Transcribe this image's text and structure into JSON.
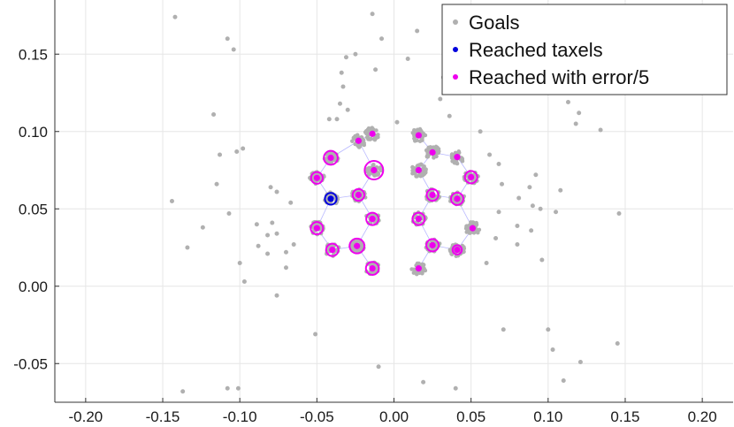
{
  "chart_data": {
    "type": "scatter",
    "title": "",
    "xlabel": "",
    "ylabel": "",
    "xlim": [
      -0.22,
      0.22
    ],
    "ylim": [
      -0.075,
      0.185
    ],
    "grid": true,
    "legend_position": "top-right",
    "x_ticks": [
      -0.2,
      -0.15,
      -0.1,
      -0.05,
      0.0,
      0.05,
      0.1,
      0.15,
      0.2
    ],
    "x_tick_labels": [
      "-0.20",
      "-0.15",
      "-0.10",
      "-0.05",
      "0.00",
      "0.05",
      "0.10",
      "0.15",
      "0.20"
    ],
    "y_ticks": [
      -0.05,
      0.0,
      0.05,
      0.1,
      0.15
    ],
    "y_tick_labels": [
      "-0.05",
      "0.00",
      "0.05",
      "0.10",
      "0.15"
    ],
    "colors": {
      "goals": "#b0b0b0",
      "reached": "#0000dd",
      "reached_error": "#ee00ee",
      "grid": "#e6e6e6",
      "mesh": "#b8b8ff",
      "axis": "#333333"
    },
    "legend": [
      {
        "label": "Goals",
        "color": "#b0b0b0"
      },
      {
        "label": "Reached taxels",
        "color": "#0000dd"
      },
      {
        "label": "Reached with error/5",
        "color": "#ee00ee"
      }
    ],
    "taxels": [
      {
        "x": -0.041,
        "y": 0.083,
        "r": 0.0045
      },
      {
        "x": -0.023,
        "y": 0.094,
        "r": 0.0005
      },
      {
        "x": -0.013,
        "y": 0.075,
        "r": 0.006
      },
      {
        "x": -0.05,
        "y": 0.07,
        "r": 0.0038
      },
      {
        "x": -0.023,
        "y": 0.059,
        "r": 0.0038
      },
      {
        "x": -0.041,
        "y": 0.0565,
        "r": 0.0038,
        "blue": true
      },
      {
        "x": -0.014,
        "y": 0.0435,
        "r": 0.004
      },
      {
        "x": -0.05,
        "y": 0.0375,
        "r": 0.004
      },
      {
        "x": -0.024,
        "y": 0.026,
        "r": 0.0048
      },
      {
        "x": -0.04,
        "y": 0.0235,
        "r": 0.004
      },
      {
        "x": -0.014,
        "y": 0.0115,
        "r": 0.0042
      },
      {
        "x": -0.014,
        "y": 0.0985,
        "r": 0.001
      },
      {
        "x": 0.016,
        "y": 0.0975,
        "r": 0.0015
      },
      {
        "x": 0.025,
        "y": 0.0865,
        "r": 0.001
      },
      {
        "x": 0.041,
        "y": 0.0835,
        "r": 0.001
      },
      {
        "x": 0.016,
        "y": 0.075,
        "r": 0.001
      },
      {
        "x": 0.05,
        "y": 0.0705,
        "r": 0.004
      },
      {
        "x": 0.025,
        "y": 0.059,
        "r": 0.0038
      },
      {
        "x": 0.041,
        "y": 0.0565,
        "r": 0.004
      },
      {
        "x": 0.016,
        "y": 0.0435,
        "r": 0.004
      },
      {
        "x": 0.051,
        "y": 0.0375,
        "r": 0.001
      },
      {
        "x": 0.025,
        "y": 0.0265,
        "r": 0.004
      },
      {
        "x": 0.041,
        "y": 0.0235,
        "r": 0.003
      },
      {
        "x": 0.016,
        "y": 0.0115,
        "r": 0.001
      }
    ],
    "scattered_goals": [
      [
        -0.142,
        0.174
      ],
      [
        -0.108,
        0.16
      ],
      [
        -0.104,
        0.153
      ],
      [
        -0.117,
        0.111
      ],
      [
        -0.113,
        0.085
      ],
      [
        -0.098,
        0.089
      ],
      [
        -0.102,
        0.087
      ],
      [
        -0.115,
        0.066
      ],
      [
        -0.08,
        0.064
      ],
      [
        -0.076,
        0.061
      ],
      [
        -0.144,
        0.055
      ],
      [
        -0.107,
        0.047
      ],
      [
        -0.124,
        0.038
      ],
      [
        -0.089,
        0.04
      ],
      [
        -0.079,
        0.041
      ],
      [
        -0.082,
        0.033
      ],
      [
        -0.076,
        0.034
      ],
      [
        -0.134,
        0.025
      ],
      [
        -0.088,
        0.026
      ],
      [
        -0.1,
        0.015
      ],
      [
        -0.082,
        0.021
      ],
      [
        -0.07,
        0.022
      ],
      [
        -0.065,
        0.027
      ],
      [
        -0.07,
        0.012
      ],
      [
        -0.097,
        0.003
      ],
      [
        -0.076,
        -0.006
      ],
      [
        -0.051,
        -0.031
      ],
      [
        -0.108,
        -0.066
      ],
      [
        -0.101,
        -0.066
      ],
      [
        -0.137,
        -0.068
      ],
      [
        -0.01,
        -0.052
      ],
      [
        0.019,
        -0.062
      ],
      [
        0.04,
        -0.066
      ],
      [
        -0.014,
        0.176
      ],
      [
        -0.008,
        0.16
      ],
      [
        0.015,
        0.165
      ],
      [
        -0.035,
        0.118
      ],
      [
        -0.033,
        0.129
      ],
      [
        -0.034,
        0.138
      ],
      [
        -0.031,
        0.148
      ],
      [
        -0.012,
        0.14
      ],
      [
        0.009,
        0.147
      ],
      [
        0.032,
        0.135
      ],
      [
        0.03,
        0.121
      ],
      [
        0.035,
        0.14
      ],
      [
        0.044,
        0.13
      ],
      [
        -0.037,
        0.108
      ],
      [
        -0.03,
        0.114
      ],
      [
        0.002,
        0.106
      ],
      [
        0.056,
        0.1
      ],
      [
        0.062,
        0.085
      ],
      [
        0.068,
        0.079
      ],
      [
        0.07,
        0.066
      ],
      [
        0.088,
        0.064
      ],
      [
        0.092,
        0.072
      ],
      [
        0.081,
        0.057
      ],
      [
        0.068,
        0.048
      ],
      [
        0.09,
        0.052
      ],
      [
        0.095,
        0.05
      ],
      [
        0.08,
        0.039
      ],
      [
        0.089,
        0.036
      ],
      [
        0.066,
        0.031
      ],
      [
        0.08,
        0.027
      ],
      [
        0.096,
        0.017
      ],
      [
        0.06,
        0.015
      ],
      [
        0.105,
        0.048
      ],
      [
        0.108,
        0.062
      ],
      [
        0.118,
        0.105
      ],
      [
        0.12,
        0.112
      ],
      [
        0.134,
        0.101
      ],
      [
        0.146,
        0.047
      ],
      [
        0.113,
        0.119
      ],
      [
        0.071,
        -0.028
      ],
      [
        0.103,
        -0.041
      ],
      [
        0.1,
        -0.028
      ],
      [
        0.11,
        -0.061
      ],
      [
        0.121,
        -0.049
      ],
      [
        0.145,
        -0.037
      ],
      [
        0.108,
        0.165
      ],
      [
        0.112,
        0.18
      ],
      [
        -0.067,
        0.054
      ],
      [
        -0.042,
        0.108
      ],
      [
        -0.025,
        0.15
      ],
      [
        0.036,
        0.11
      ]
    ]
  }
}
